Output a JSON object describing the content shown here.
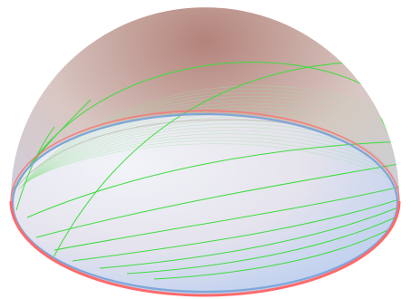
{
  "figure": {
    "subject": "hemisphere-with-geodesic-curves",
    "colors": {
      "background": "#ffffff",
      "dome_top": "#b3837a",
      "dome_mid": "#d9c7c3",
      "dome_bottom": "#c9d3ee",
      "interior_light": "#f3f6fb",
      "interior_blue": "#b8cdf0",
      "rim_red": "#ff6a6a",
      "rim_blue": "#7fa6d8",
      "curve_green": "#3ddc3d",
      "curve_green_faint": "#9fe3a0"
    }
  }
}
